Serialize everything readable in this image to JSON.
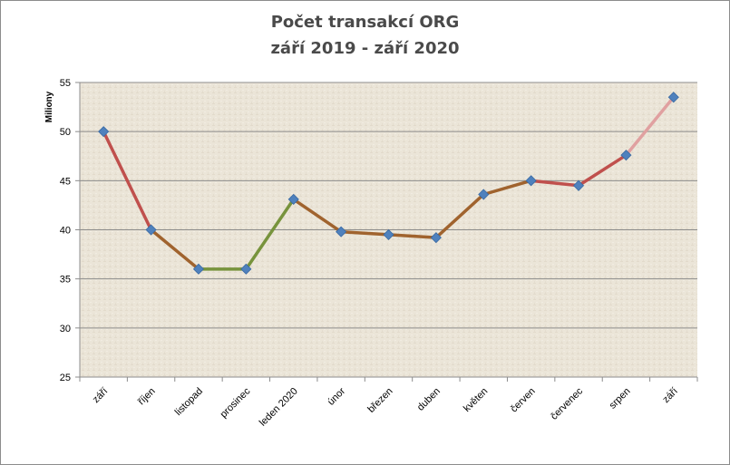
{
  "chart_data": {
    "type": "line",
    "title": "Počet transakcí ORG",
    "subtitle": "září  2019 - září 2020",
    "xlabel": "",
    "ylabel": "Miliony",
    "categories": [
      "září",
      "říjen",
      "listopad",
      "prosinec",
      "leden 2020",
      "únor",
      "březen",
      "duben",
      "květen",
      "červen",
      "červenec",
      "srpen",
      "září"
    ],
    "series": [
      {
        "values": [
          50.0,
          40.0,
          36.0,
          36.0,
          43.1,
          39.8,
          39.5,
          39.2,
          43.6,
          45.0,
          44.5,
          47.6,
          53.5
        ]
      }
    ],
    "ylim": [
      25,
      55
    ],
    "yticks": [
      25,
      30,
      35,
      40,
      45,
      50,
      55
    ],
    "grid": true,
    "legend": "none",
    "colors": {
      "marker": "#4f81bd",
      "segments": [
        "#c0504d",
        "#a0632e",
        "#77933c",
        "#77933c",
        "#a0632e",
        "#a0632e",
        "#a0632e",
        "#a0632e",
        "#a0632e",
        "#c0504d",
        "#c0504d",
        "#e0a0a0"
      ],
      "grid": "#8c8c8c",
      "plot_background": "#ece6da"
    }
  }
}
